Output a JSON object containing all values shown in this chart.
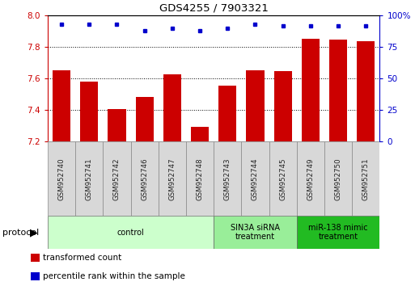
{
  "title": "GDS4255 / 7903321",
  "samples": [
    "GSM952740",
    "GSM952741",
    "GSM952742",
    "GSM952746",
    "GSM952747",
    "GSM952748",
    "GSM952743",
    "GSM952744",
    "GSM952745",
    "GSM952749",
    "GSM952750",
    "GSM952751"
  ],
  "red_values": [
    7.655,
    7.58,
    7.405,
    7.485,
    7.63,
    7.295,
    7.555,
    7.655,
    7.65,
    7.855,
    7.85,
    7.84
  ],
  "blue_values": [
    93,
    93,
    93,
    88,
    90,
    88,
    90,
    93,
    92,
    92,
    92,
    92
  ],
  "ylim_left": [
    7.2,
    8.0
  ],
  "ylim_right": [
    0,
    100
  ],
  "yticks_left": [
    7.2,
    7.4,
    7.6,
    7.8,
    8.0
  ],
  "yticks_right": [
    0,
    25,
    50,
    75,
    100
  ],
  "ytick_labels_right": [
    "0",
    "25",
    "50",
    "75",
    "100%"
  ],
  "bar_color": "#cc0000",
  "dot_color": "#0000cc",
  "bar_width": 0.65,
  "protocol_groups": [
    {
      "label": "control",
      "start": 0,
      "end": 5,
      "color": "#ccffcc"
    },
    {
      "label": "SIN3A siRNA\ntreatment",
      "start": 6,
      "end": 8,
      "color": "#99ee99"
    },
    {
      "label": "miR-138 mimic\ntreatment",
      "start": 9,
      "end": 11,
      "color": "#22bb22"
    }
  ],
  "protocol_label": "protocol",
  "legend_items": [
    {
      "color": "#cc0000",
      "label": "transformed count"
    },
    {
      "color": "#0000cc",
      "label": "percentile rank within the sample"
    }
  ],
  "left_tick_color": "#cc0000",
  "right_tick_color": "#0000cc",
  "xticklabel_color": "#333333",
  "grid_dotted_ticks": [
    7.4,
    7.6,
    7.8
  ]
}
